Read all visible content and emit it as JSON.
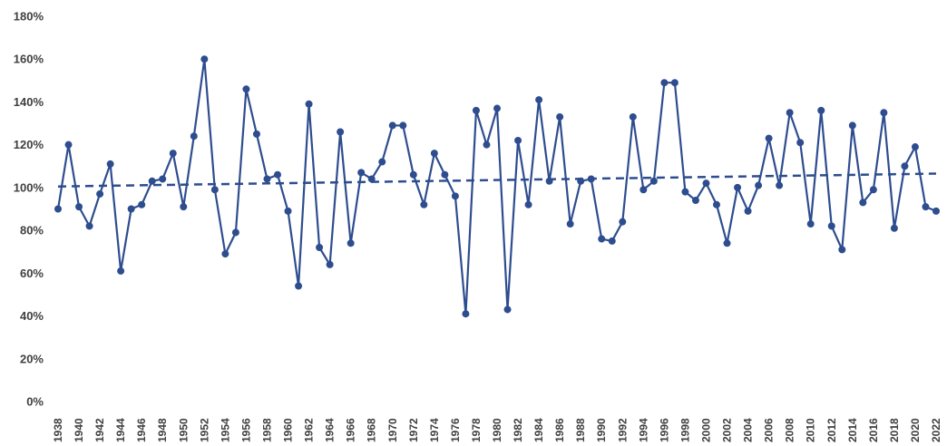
{
  "chart_data": {
    "type": "line",
    "title": "",
    "xlabel": "",
    "ylabel": "",
    "ylim": [
      0,
      180
    ],
    "y_ticks": [
      0,
      20,
      40,
      60,
      80,
      100,
      120,
      140,
      160,
      180
    ],
    "y_tick_format": "{v}%",
    "x_range": [
      1938,
      2022
    ],
    "x_ticks": [
      1938,
      1940,
      1942,
      1944,
      1946,
      1948,
      1950,
      1952,
      1954,
      1956,
      1958,
      1960,
      1962,
      1964,
      1966,
      1968,
      1970,
      1972,
      1974,
      1976,
      1978,
      1980,
      1982,
      1984,
      1986,
      1988,
      1990,
      1992,
      1994,
      1996,
      1998,
      2000,
      2002,
      2004,
      2006,
      2008,
      2010,
      2012,
      2014,
      2016,
      2018,
      2020,
      2022
    ],
    "grid": false,
    "legend": "none",
    "series": [
      {
        "color": "#2e4d8f",
        "marker": "circle",
        "style": "solid",
        "x": [
          1938,
          1939,
          1940,
          1941,
          1942,
          1943,
          1944,
          1945,
          1946,
          1947,
          1948,
          1949,
          1950,
          1951,
          1952,
          1953,
          1954,
          1955,
          1956,
          1957,
          1958,
          1959,
          1960,
          1961,
          1962,
          1963,
          1964,
          1965,
          1966,
          1967,
          1968,
          1969,
          1970,
          1971,
          1972,
          1973,
          1974,
          1975,
          1976,
          1977,
          1978,
          1979,
          1980,
          1981,
          1982,
          1983,
          1984,
          1985,
          1986,
          1987,
          1988,
          1989,
          1990,
          1991,
          1992,
          1993,
          1994,
          1995,
          1996,
          1997,
          1998,
          1999,
          2000,
          2001,
          2002,
          2003,
          2004,
          2005,
          2006,
          2007,
          2008,
          2009,
          2010,
          2011,
          2012,
          2013,
          2014,
          2015,
          2016,
          2017,
          2018,
          2019,
          2020,
          2021,
          2022
        ],
        "y": [
          90,
          120,
          91,
          82,
          97,
          111,
          61,
          90,
          92,
          103,
          104,
          116,
          91,
          124,
          160,
          99,
          69,
          79,
          146,
          125,
          104,
          106,
          89,
          54,
          139,
          72,
          64,
          126,
          74,
          107,
          104,
          112,
          129,
          129,
          106,
          92,
          116,
          106,
          96,
          41,
          136,
          120,
          137,
          43,
          122,
          92,
          141,
          103,
          133,
          83,
          103,
          104,
          76,
          75,
          84,
          133,
          99,
          103,
          149,
          149,
          98,
          94,
          102,
          92,
          74,
          100,
          89,
          101,
          123,
          101,
          135,
          121,
          83,
          136,
          82,
          71,
          129,
          93,
          99,
          135,
          81,
          110,
          119,
          91,
          89
        ]
      },
      {
        "color": "#2e4d8f",
        "marker": "none",
        "style": "dashed",
        "x": [
          1938,
          2022
        ],
        "y": [
          100.5,
          106.5
        ]
      }
    ]
  }
}
